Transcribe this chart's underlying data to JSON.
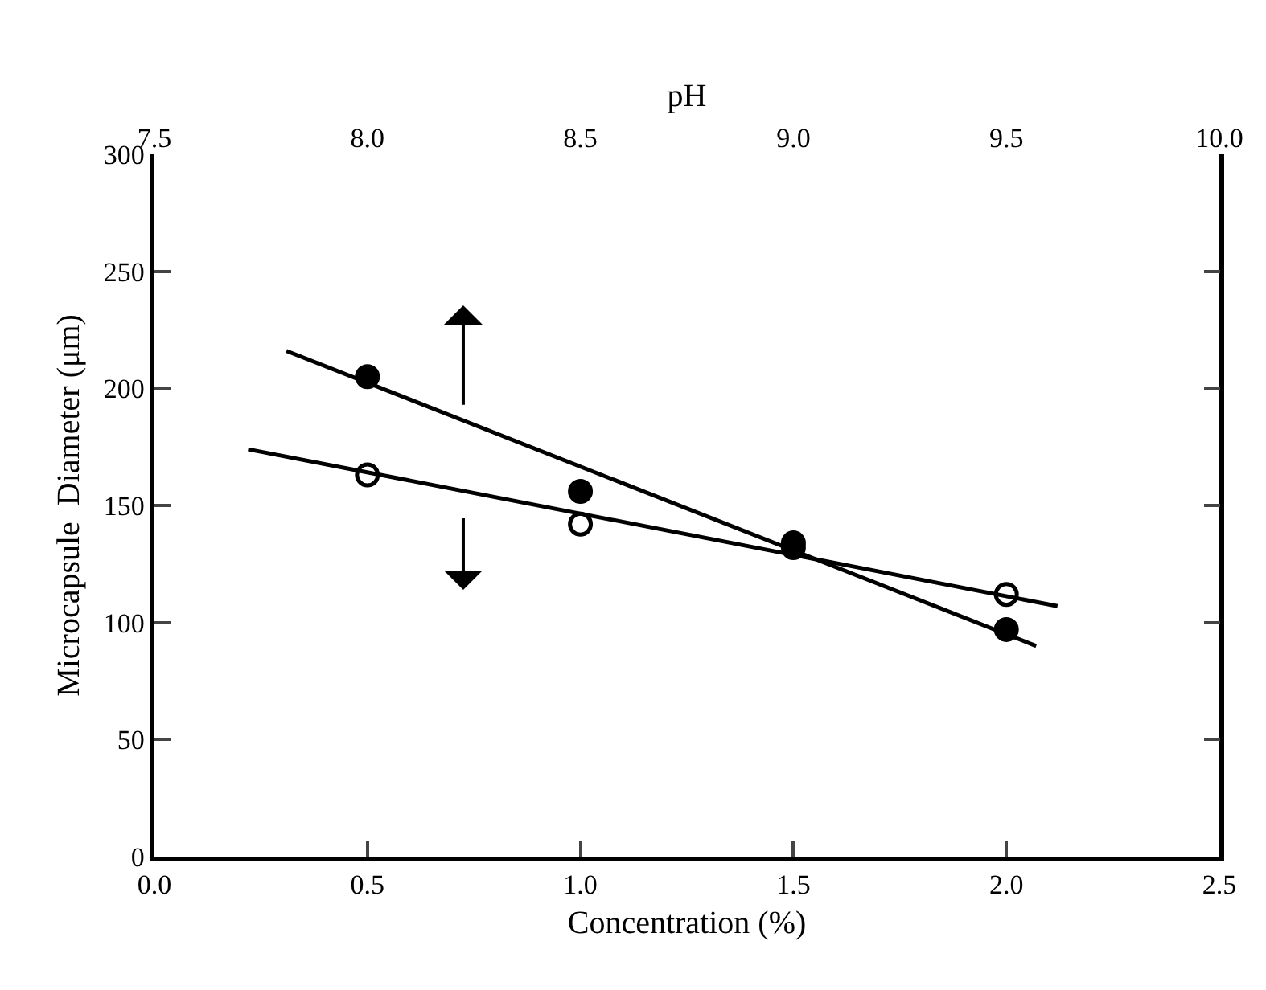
{
  "chart_data": {
    "type": "scatter",
    "xlabel": "Concentration (%)",
    "ylabel": "Microcapsule  Diameter (μm)",
    "x2label": "pH",
    "xlim": [
      0,
      2.5
    ],
    "xticks": [
      {
        "value": 0,
        "label": "0.0"
      },
      {
        "value": 0.5,
        "label": "0.5"
      },
      {
        "value": 1,
        "label": "1.0"
      },
      {
        "value": 1.5,
        "label": "1.5"
      },
      {
        "value": 2,
        "label": "2.0"
      },
      {
        "value": 2.5,
        "label": "2.5"
      }
    ],
    "x2lim": [
      7.5,
      10
    ],
    "x2ticks": [
      {
        "value": 7.5,
        "label": "7.5"
      },
      {
        "value": 8,
        "label": "8.0"
      },
      {
        "value": 8.5,
        "label": "8.5"
      },
      {
        "value": 9,
        "label": "9.0"
      },
      {
        "value": 9.5,
        "label": "9.5"
      },
      {
        "value": 10,
        "label": "10.0"
      }
    ],
    "ylim": [
      0,
      300
    ],
    "yticks": [
      0,
      50,
      100,
      150,
      200,
      250,
      300
    ],
    "series": [
      {
        "marker": "circle",
        "color": "#000000",
        "x": [
          0.5,
          1.0,
          1.5,
          2.0
        ],
        "values": [
          205,
          156,
          134,
          97
        ]
      },
      {
        "marker": "circle-open",
        "color": "#000000",
        "x": [
          0.5,
          1.0,
          1.5,
          2.0
        ],
        "values": [
          163,
          142,
          132,
          112
        ]
      },
      {
        "type": "line",
        "color": "#000000",
        "x": [
          0.31,
          2.07
        ],
        "values": [
          216,
          90
        ]
      },
      {
        "type": "line",
        "color": "#000000",
        "x": [
          0.22,
          2.12
        ],
        "values": [
          174,
          107
        ]
      }
    ]
  }
}
